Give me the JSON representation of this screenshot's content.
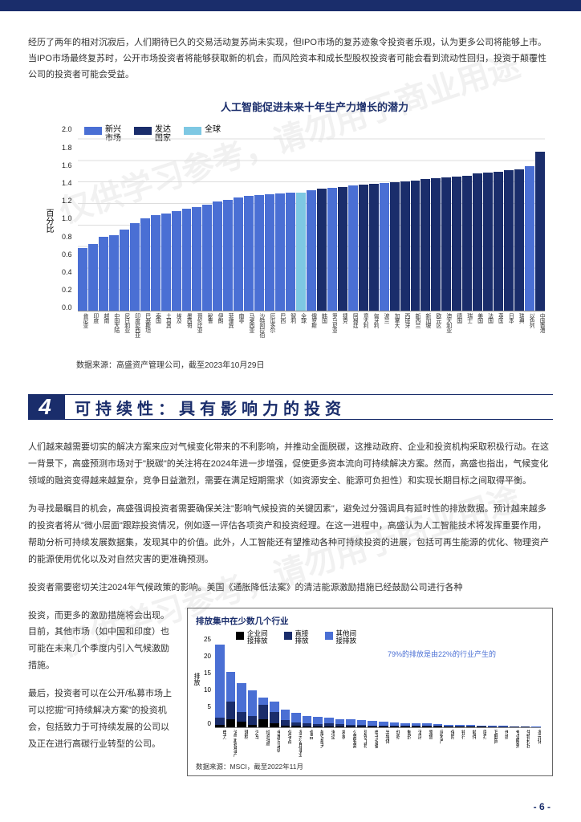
{
  "intro": "经历了两年的相对沉寂后，人们期待已久的交易活动复苏尚未实现，但IPO市场的复苏迹象令投资者乐观，认为更多公司将能够上市。当IPO市场最终复苏时，公开市场投资者将能够获取新的机会，而风险资本和成长型股权投资者可能会看到流动性回归，投资于颠覆性公司的投资者可能会受益。",
  "chart1": {
    "title": "人工智能促进未来十年生产力增长的潜力",
    "ylabel": "百分比",
    "ymax": 2.0,
    "ytick_step": 0.2,
    "legend": [
      {
        "label": "新兴<br>市场",
        "color": "#4a6fd4"
      },
      {
        "label": "发达<br>国家",
        "color": "#1a2d6b"
      },
      {
        "label": "全球",
        "color": "#7ec8e3"
      }
    ],
    "bars": [
      {
        "value": 0.68,
        "color": "#4a6fd4",
        "label": "肯尼亚"
      },
      {
        "value": 0.72,
        "color": "#4a6fd4",
        "label": "印度"
      },
      {
        "value": 0.8,
        "color": "#4a6fd4",
        "label": "越南"
      },
      {
        "value": 0.82,
        "color": "#4a6fd4",
        "label": "中国大陆"
      },
      {
        "value": 0.88,
        "color": "#4a6fd4",
        "label": "尼日利亚"
      },
      {
        "value": 0.95,
        "color": "#4a6fd4",
        "label": "印度尼西亚"
      },
      {
        "value": 1.0,
        "color": "#4a6fd4",
        "label": "巴基斯坦"
      },
      {
        "value": 1.03,
        "color": "#4a6fd4",
        "label": "泰国"
      },
      {
        "value": 1.05,
        "color": "#4a6fd4",
        "label": "土耳其"
      },
      {
        "value": 1.08,
        "color": "#4a6fd4",
        "label": "埃及"
      },
      {
        "value": 1.1,
        "color": "#4a6fd4",
        "label": "墨西哥"
      },
      {
        "value": 1.12,
        "color": "#4a6fd4",
        "label": "哥伦比亚"
      },
      {
        "value": 1.15,
        "color": "#4a6fd4",
        "label": "秘鲁"
      },
      {
        "value": 1.18,
        "color": "#4a6fd4",
        "label": "伊朗"
      },
      {
        "value": 1.2,
        "color": "#4a6fd4",
        "label": "菲律宾"
      },
      {
        "value": 1.22,
        "color": "#4a6fd4",
        "label": "南非"
      },
      {
        "value": 1.24,
        "color": "#4a6fd4",
        "label": "马来西亚"
      },
      {
        "value": 1.25,
        "color": "#4a6fd4",
        "label": "沙特阿拉伯"
      },
      {
        "value": 1.26,
        "color": "#4a6fd4",
        "label": "厄瓜多尔"
      },
      {
        "value": 1.27,
        "color": "#4a6fd4",
        "label": "巴西"
      },
      {
        "value": 1.28,
        "color": "#4a6fd4",
        "label": "智利"
      },
      {
        "value": 1.28,
        "color": "#7ec8e3",
        "label": "全球"
      },
      {
        "value": 1.3,
        "color": "#4a6fd4",
        "label": "俄罗斯"
      },
      {
        "value": 1.32,
        "color": "#1a2d6b",
        "label": "韩国"
      },
      {
        "value": 1.33,
        "color": "#4a6fd4",
        "label": "罗马尼亚"
      },
      {
        "value": 1.34,
        "color": "#1a2d6b",
        "label": "捷克"
      },
      {
        "value": 1.35,
        "color": "#4a6fd4",
        "label": "阿根廷"
      },
      {
        "value": 1.36,
        "color": "#1a2d6b",
        "label": "意大利"
      },
      {
        "value": 1.37,
        "color": "#1a2d6b",
        "label": "匈牙利"
      },
      {
        "value": 1.38,
        "color": "#4a6fd4",
        "label": "波兰"
      },
      {
        "value": 1.39,
        "color": "#1a2d6b",
        "label": "加拿大"
      },
      {
        "value": 1.4,
        "color": "#1a2d6b",
        "label": "西班牙"
      },
      {
        "value": 1.41,
        "color": "#1a2d6b",
        "label": "新西兰"
      },
      {
        "value": 1.42,
        "color": "#1a2d6b",
        "label": "新加坡"
      },
      {
        "value": 1.43,
        "color": "#1a2d6b",
        "label": "欧元区"
      },
      {
        "value": 1.44,
        "color": "#1a2d6b",
        "label": "澳大利亚"
      },
      {
        "value": 1.45,
        "color": "#1a2d6b",
        "label": "德国"
      },
      {
        "value": 1.46,
        "color": "#1a2d6b",
        "label": "瑞士"
      },
      {
        "value": 1.48,
        "color": "#1a2d6b",
        "label": "美国"
      },
      {
        "value": 1.49,
        "color": "#1a2d6b",
        "label": "法国"
      },
      {
        "value": 1.5,
        "color": "#1a2d6b",
        "label": "英国"
      },
      {
        "value": 1.52,
        "color": "#1a2d6b",
        "label": "日本"
      },
      {
        "value": 1.53,
        "color": "#1a2d6b",
        "label": "瑞典"
      },
      {
        "value": 1.56,
        "color": "#4a6fd4",
        "label": "以色列"
      },
      {
        "value": 1.72,
        "color": "#1a2d6b",
        "label": "中国香港"
      }
    ],
    "source": "数据来源：高盛资产管理公司，截至2023年10月29日"
  },
  "section": {
    "num": "4",
    "title": "可持续性：具有影响力的投资"
  },
  "para1": "人们越来越需要切实的解决方案来应对气候变化带来的不利影响，并推动全面脱碳，这推动政府、企业和投资机构采取积极行动。在这一背景下，高盛预测市场对于\"脱碳\"的关注将在2024年进一步增强，促使更多资本流向可持续解决方案。然而，高盛也指出，气候变化领域的融资变得越来越复杂，竞争日益激烈，需要在满足短期需求（如资源安全、能源可负担性）和实现长期目标之间取得平衡。",
  "para2": "为寻找最瞩目的机会，高盛强调投资者需要确保关注\"影响气候投资的关键因素\"，避免过分强调具有延时性的排放数据。预计越来越多的投资者将从\"微小层面\"跟踪投资情况，例如逐一评估各项资产和投资经理。在这一进程中，高盛认为人工智能技术将发挥重要作用，帮助分析可持续发展数据集，发现其中的价值。此外，人工智能还有望推动各种可持续投资的进展，包括可再生能源的优化、物理资产的能源使用优化以及对自然灾害的更准确预测。",
  "para3": "投资者需要密切关注2024年气候政策的影响。美国《通胀降低法案》的清洁能源激励措施已经鼓励公司进行各种",
  "bottom_left1": "投资，而更多的激励措施将会出现。目前，其他市场（如中国和印度）也可能在未来几个季度内引入气候激励措施。",
  "bottom_left2": "最后，投资者可以在公开/私募市场上可以挖掘\"可持续解决方案\"的投资机会，包括致力于可持续发展的公司以及正在进行高碳行业转型的公司。",
  "chart2": {
    "title": "排放集中在少数几个行业",
    "legend": [
      {
        "label": "企业间<br>接排放",
        "color": "#000000"
      },
      {
        "label": "直接<br>排放",
        "color": "#1a2d6b"
      },
      {
        "label": "其他间<br>接排放",
        "color": "#4a6fd4"
      }
    ],
    "note": "79%的排放是由22%的行业产生的",
    "ylabel": "排放",
    "ymax": 25,
    "ytick_step": 5,
    "bars": [
      {
        "segs": [
          0.5,
          2,
          20
        ],
        "label": "电力"
      },
      {
        "segs": [
          2,
          5,
          8
        ],
        "label": "油气勘探生产"
      },
      {
        "segs": [
          1.5,
          2.5,
          8
        ],
        "label": "建材"
      },
      {
        "segs": [
          0.5,
          2.5,
          7
        ],
        "label": "汽车"
      },
      {
        "segs": [
          2,
          4,
          2
        ],
        "label": "综合油气"
      },
      {
        "segs": [
          1,
          3,
          3
        ],
        "label": "金属与采矿"
      },
      {
        "segs": [
          0.3,
          1.5,
          3
        ],
        "label": "化学品"
      },
      {
        "segs": [
          0.3,
          1,
          2.5
        ],
        "label": "多元公用事业"
      },
      {
        "segs": [
          0.2,
          0.8,
          2
        ],
        "label": "食品"
      },
      {
        "segs": [
          0.2,
          0.5,
          2
        ],
        "label": "航空航天"
      },
      {
        "segs": [
          0.2,
          0.8,
          1.5
        ],
        "label": "海运"
      },
      {
        "segs": [
          0.2,
          0.5,
          1.5
        ],
        "label": "机械"
      },
      {
        "segs": [
          0.1,
          0.5,
          1.5
        ],
        "label": "公路铁路"
      },
      {
        "segs": [
          0.1,
          0.4,
          1.3
        ],
        "label": "建筑工程"
      },
      {
        "segs": [
          0.1,
          0.3,
          1.2
        ],
        "label": "电子设备"
      },
      {
        "segs": [
          0.1,
          0.3,
          1
        ],
        "label": "半导体"
      },
      {
        "segs": [
          0.1,
          0.3,
          0.9
        ],
        "label": "纺织"
      },
      {
        "segs": [
          0.1,
          0.2,
          0.8
        ],
        "label": "制药"
      },
      {
        "segs": [
          0.1,
          0.2,
          0.7
        ],
        "label": "酒店"
      },
      {
        "segs": [
          0.1,
          0.2,
          0.6
        ],
        "label": "零售"
      },
      {
        "segs": [
          0.1,
          0.2,
          0.5
        ],
        "label": "房地产"
      },
      {
        "segs": [
          0.1,
          0.1,
          0.4
        ],
        "label": "保险"
      },
      {
        "segs": [
          0.1,
          0.1,
          0.3
        ],
        "label": "银行"
      },
      {
        "segs": [
          0.1,
          0.1,
          0.3
        ],
        "label": "软件"
      },
      {
        "segs": [
          0.1,
          0.1,
          0.2
        ],
        "label": "医疗"
      },
      {
        "segs": [
          0,
          0.1,
          0.2
        ],
        "label": "互联网"
      },
      {
        "segs": [
          0,
          0.1,
          0.2
        ],
        "label": "传媒"
      },
      {
        "segs": [
          0,
          0.1,
          0.1
        ],
        "label": "专业服务"
      },
      {
        "segs": [
          0,
          0.1,
          0.1
        ],
        "label": "生物科技"
      },
      {
        "segs": [
          0,
          0,
          0.1
        ],
        "label": "多元化"
      }
    ],
    "source": "数据来源：MSCI，截至2022年11月"
  },
  "page": "- 6 -",
  "watermark": "仅供学习参考，请勿用于商业用途"
}
